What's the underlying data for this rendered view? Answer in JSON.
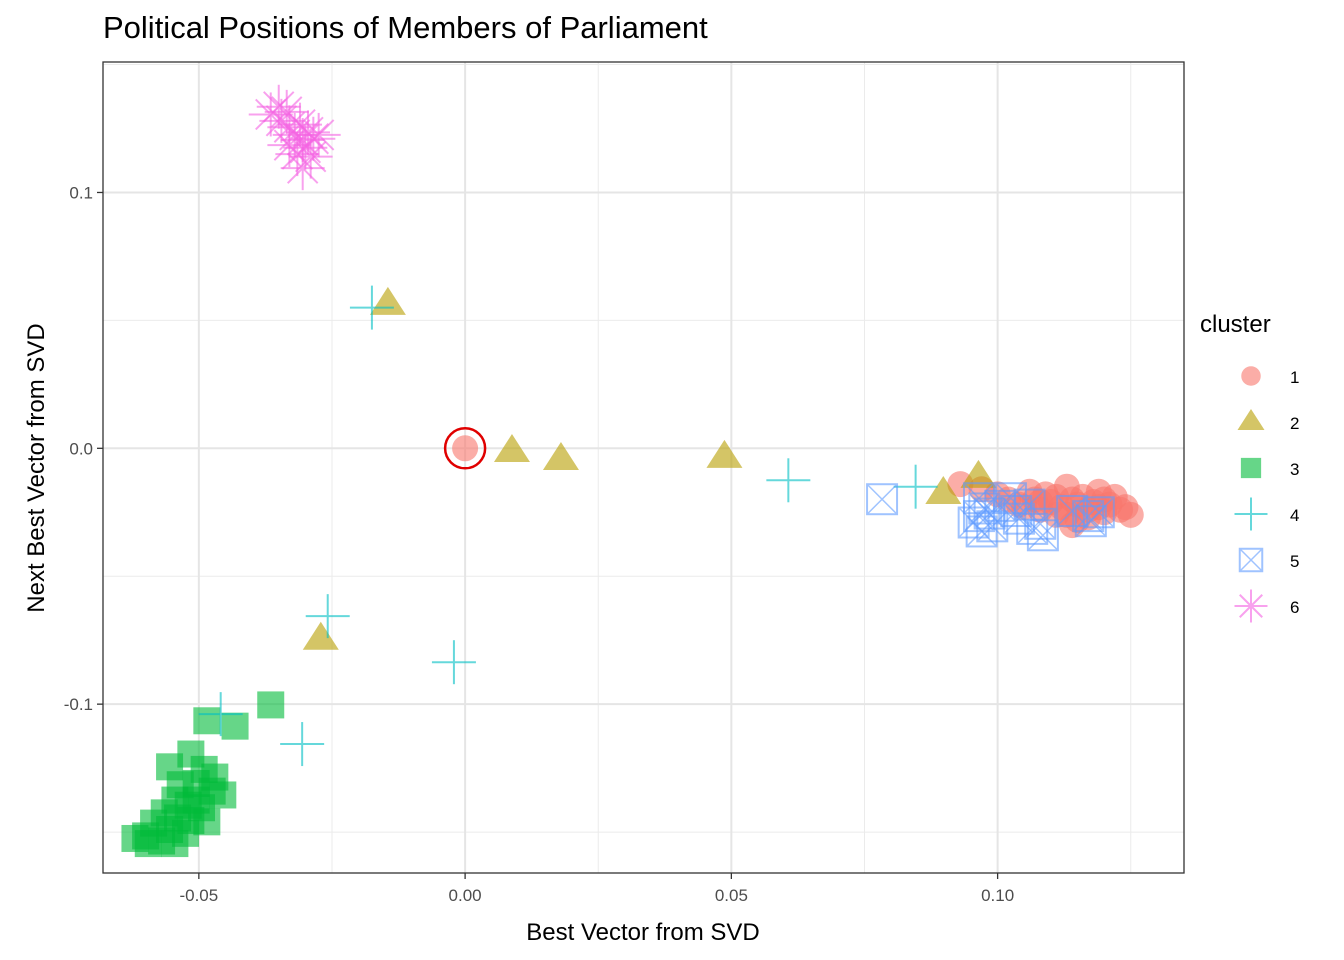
{
  "chart_data": {
    "type": "scatter",
    "title": "Political Positions of Members of Parliament",
    "xlabel": "Best Vector from SVD",
    "ylabel": "Next Best Vector from SVD",
    "xlim": [
      -0.068,
      0.135
    ],
    "ylim": [
      -0.166,
      0.151
    ],
    "x_ticks": [
      -0.05,
      0.0,
      0.05,
      0.1
    ],
    "x_tick_labels": [
      "-0.05",
      "0.00",
      "0.05",
      "0.10"
    ],
    "y_ticks": [
      -0.1,
      0.0,
      0.1
    ],
    "y_tick_labels": [
      "-0.1",
      "0.0",
      "0.1"
    ],
    "grid": true,
    "legend": {
      "title": "cluster",
      "position": "right",
      "entries": [
        {
          "label": "1",
          "shape": "circle",
          "color": "#F8766D"
        },
        {
          "label": "2",
          "shape": "triangle",
          "color": "#B79F00"
        },
        {
          "label": "3",
          "shape": "square",
          "color": "#00BA38"
        },
        {
          "label": "4",
          "shape": "plus",
          "color": "#00BFC4"
        },
        {
          "label": "5",
          "shape": "square-x",
          "color": "#619CFF"
        },
        {
          "label": "6",
          "shape": "asterisk",
          "color": "#F564E3"
        }
      ]
    },
    "annotation": {
      "type": "highlight-circle",
      "x": 0.0,
      "y": 0.0,
      "color": "#E00000"
    },
    "series": [
      {
        "name": "1",
        "points": [
          [
            0.0,
            0.0
          ],
          [
            0.093,
            -0.014
          ],
          [
            0.097,
            -0.016
          ],
          [
            0.1,
            -0.018
          ],
          [
            0.102,
            -0.02
          ],
          [
            0.104,
            -0.022
          ],
          [
            0.106,
            -0.017
          ],
          [
            0.107,
            -0.02
          ],
          [
            0.108,
            -0.024
          ],
          [
            0.109,
            -0.018
          ],
          [
            0.11,
            -0.021
          ],
          [
            0.111,
            -0.019
          ],
          [
            0.112,
            -0.023
          ],
          [
            0.113,
            -0.015
          ],
          [
            0.113,
            -0.026
          ],
          [
            0.114,
            -0.02
          ],
          [
            0.115,
            -0.022
          ],
          [
            0.115,
            -0.028
          ],
          [
            0.116,
            -0.019
          ],
          [
            0.117,
            -0.024
          ],
          [
            0.118,
            -0.021
          ],
          [
            0.119,
            -0.017
          ],
          [
            0.12,
            -0.02
          ],
          [
            0.12,
            -0.025
          ],
          [
            0.121,
            -0.022
          ],
          [
            0.122,
            -0.019
          ],
          [
            0.123,
            -0.024
          ],
          [
            0.124,
            -0.023
          ],
          [
            0.125,
            -0.026
          ],
          [
            0.111,
            -0.026
          ],
          [
            0.114,
            -0.03
          ],
          [
            0.117,
            -0.027
          ],
          [
            0.108,
            -0.021
          ],
          [
            0.105,
            -0.023
          ],
          [
            0.119,
            -0.023
          ]
        ]
      },
      {
        "name": "2",
        "points": [
          [
            -0.0145,
            0.0563
          ],
          [
            0.0088,
            -0.0012
          ],
          [
            0.018,
            -0.0043
          ],
          [
            0.0487,
            -0.0035
          ],
          [
            0.0898,
            -0.0176
          ],
          [
            0.0964,
            -0.0113
          ],
          [
            -0.0271,
            -0.0746
          ]
        ]
      },
      {
        "name": "3",
        "points": [
          [
            -0.0485,
            -0.1065
          ],
          [
            -0.0432,
            -0.1086
          ],
          [
            -0.0365,
            -0.1003
          ],
          [
            -0.0555,
            -0.1245
          ],
          [
            -0.0515,
            -0.1195
          ],
          [
            -0.049,
            -0.1255
          ],
          [
            -0.0505,
            -0.131
          ],
          [
            -0.0535,
            -0.1315
          ],
          [
            -0.0475,
            -0.134
          ],
          [
            -0.0455,
            -0.1355
          ],
          [
            -0.0545,
            -0.1375
          ],
          [
            -0.052,
            -0.1395
          ],
          [
            -0.0495,
            -0.1405
          ],
          [
            -0.0565,
            -0.1425
          ],
          [
            -0.054,
            -0.1445
          ],
          [
            -0.0515,
            -0.1455
          ],
          [
            -0.0485,
            -0.146
          ],
          [
            -0.0585,
            -0.1465
          ],
          [
            -0.0555,
            -0.149
          ],
          [
            -0.0525,
            -0.1505
          ],
          [
            -0.06,
            -0.1515
          ],
          [
            -0.057,
            -0.1535
          ],
          [
            -0.0545,
            -0.1545
          ],
          [
            -0.062,
            -0.1525
          ],
          [
            -0.0595,
            -0.1545
          ],
          [
            -0.0505,
            -0.1375
          ],
          [
            -0.047,
            -0.1285
          ]
        ]
      },
      {
        "name": "4",
        "points": [
          [
            -0.0175,
            0.055
          ],
          [
            0.0607,
            -0.0125
          ],
          [
            0.0846,
            -0.015
          ],
          [
            -0.0258,
            -0.0656
          ],
          [
            -0.0021,
            -0.0836
          ],
          [
            -0.0306,
            -0.1156
          ],
          [
            -0.0459,
            -0.1039
          ]
        ]
      },
      {
        "name": "5",
        "points": [
          [
            0.0783,
            -0.0199
          ],
          [
            0.0965,
            -0.0195
          ],
          [
            0.0975,
            -0.0235
          ],
          [
            0.0965,
            -0.0265
          ],
          [
            0.0955,
            -0.029
          ],
          [
            0.0985,
            -0.0255
          ],
          [
            0.099,
            -0.0305
          ],
          [
            0.1005,
            -0.0225
          ],
          [
            0.1025,
            -0.0195
          ],
          [
            0.1035,
            -0.0245
          ],
          [
            0.104,
            -0.0275
          ],
          [
            0.106,
            -0.022
          ],
          [
            0.1065,
            -0.0315
          ],
          [
            0.108,
            -0.0295
          ],
          [
            0.114,
            -0.0245
          ],
          [
            0.117,
            -0.0265
          ],
          [
            0.119,
            -0.025
          ],
          [
            0.1175,
            -0.0285
          ],
          [
            0.097,
            -0.0325
          ],
          [
            0.1085,
            -0.034
          ]
        ]
      },
      {
        "name": "6",
        "points": [
          [
            -0.0365,
            0.1305
          ],
          [
            -0.035,
            0.1335
          ],
          [
            -0.0345,
            0.128
          ],
          [
            -0.0335,
            0.1315
          ],
          [
            -0.033,
            0.1255
          ],
          [
            -0.032,
            0.1225
          ],
          [
            -0.031,
            0.1265
          ],
          [
            -0.0305,
            0.1205
          ],
          [
            -0.03,
            0.1175
          ],
          [
            -0.0295,
            0.1235
          ],
          [
            -0.029,
            0.114
          ],
          [
            -0.0285,
            0.121
          ],
          [
            -0.0275,
            0.1225
          ],
          [
            -0.0305,
            0.1095
          ],
          [
            -0.0315,
            0.115
          ],
          [
            -0.033,
            0.1185
          ]
        ]
      }
    ]
  }
}
